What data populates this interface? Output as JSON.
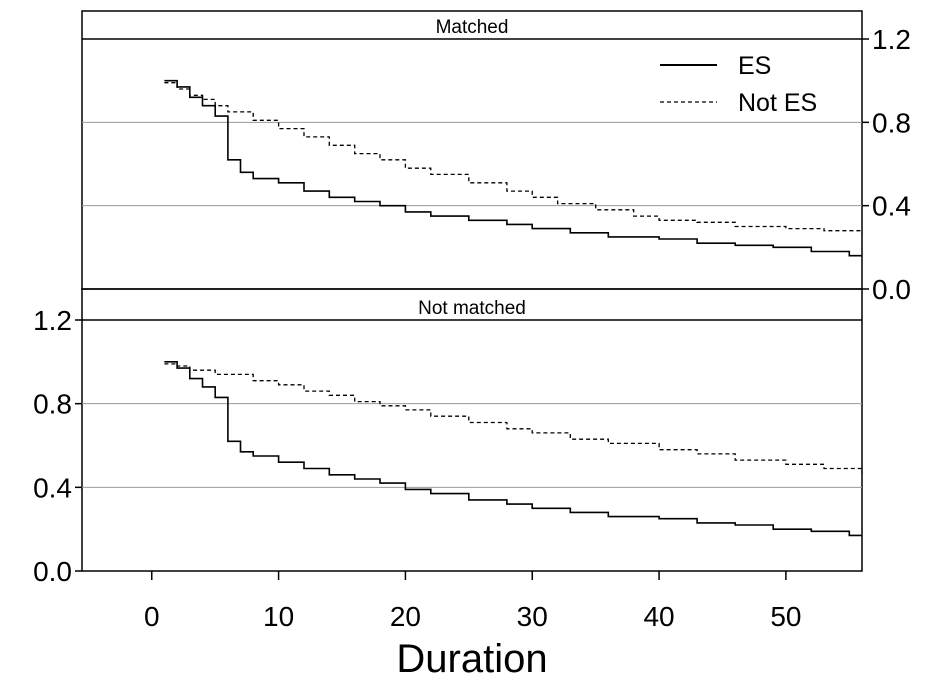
{
  "chart_data": {
    "type": "line",
    "subtype": "step",
    "xlabel": "Duration",
    "x_ticks": [
      "0",
      "10",
      "20",
      "30",
      "40",
      "50"
    ],
    "y_ticks": [
      "0.0",
      "0.4",
      "0.8",
      "1.2"
    ],
    "xlim": [
      -5.5,
      56
    ],
    "ylim": [
      0,
      1.2
    ],
    "grid": "horizontal",
    "legend": {
      "placement": "top-right of Matched panel",
      "entries": [
        {
          "label": "ES",
          "style": "solid"
        },
        {
          "label": "Not ES",
          "style": "dashed"
        }
      ]
    },
    "panels": [
      {
        "title": "Matched",
        "y_axis_side": "right",
        "series": [
          {
            "name": "ES",
            "style": "solid",
            "points": [
              [
                1,
                1.0
              ],
              [
                2,
                0.97
              ],
              [
                3,
                0.92
              ],
              [
                4,
                0.88
              ],
              [
                5,
                0.83
              ],
              [
                6,
                0.62
              ],
              [
                7,
                0.56
              ],
              [
                8,
                0.53
              ],
              [
                10,
                0.51
              ],
              [
                12,
                0.47
              ],
              [
                14,
                0.44
              ],
              [
                16,
                0.42
              ],
              [
                18,
                0.4
              ],
              [
                20,
                0.37
              ],
              [
                22,
                0.35
              ],
              [
                25,
                0.33
              ],
              [
                28,
                0.31
              ],
              [
                30,
                0.29
              ],
              [
                33,
                0.27
              ],
              [
                36,
                0.25
              ],
              [
                40,
                0.24
              ],
              [
                43,
                0.22
              ],
              [
                46,
                0.21
              ],
              [
                49,
                0.2
              ],
              [
                52,
                0.18
              ],
              [
                55,
                0.16
              ],
              [
                56,
                0.16
              ]
            ]
          },
          {
            "name": "Not ES",
            "style": "dashed",
            "points": [
              [
                1,
                0.99
              ],
              [
                2,
                0.96
              ],
              [
                3,
                0.93
              ],
              [
                4,
                0.91
              ],
              [
                5,
                0.88
              ],
              [
                6,
                0.85
              ],
              [
                8,
                0.81
              ],
              [
                10,
                0.77
              ],
              [
                12,
                0.73
              ],
              [
                14,
                0.69
              ],
              [
                16,
                0.65
              ],
              [
                18,
                0.62
              ],
              [
                20,
                0.58
              ],
              [
                22,
                0.55
              ],
              [
                25,
                0.51
              ],
              [
                28,
                0.47
              ],
              [
                30,
                0.44
              ],
              [
                32,
                0.41
              ],
              [
                35,
                0.38
              ],
              [
                38,
                0.35
              ],
              [
                40,
                0.33
              ],
              [
                43,
                0.32
              ],
              [
                46,
                0.3
              ],
              [
                50,
                0.29
              ],
              [
                53,
                0.28
              ],
              [
                56,
                0.27
              ]
            ]
          }
        ]
      },
      {
        "title": "Not matched",
        "y_axis_side": "left",
        "series": [
          {
            "name": "ES",
            "style": "solid",
            "points": [
              [
                1,
                1.0
              ],
              [
                2,
                0.97
              ],
              [
                3,
                0.92
              ],
              [
                4,
                0.88
              ],
              [
                5,
                0.83
              ],
              [
                6,
                0.62
              ],
              [
                7,
                0.57
              ],
              [
                8,
                0.55
              ],
              [
                10,
                0.52
              ],
              [
                12,
                0.49
              ],
              [
                14,
                0.46
              ],
              [
                16,
                0.44
              ],
              [
                18,
                0.42
              ],
              [
                20,
                0.39
              ],
              [
                22,
                0.37
              ],
              [
                25,
                0.34
              ],
              [
                28,
                0.32
              ],
              [
                30,
                0.3
              ],
              [
                33,
                0.28
              ],
              [
                36,
                0.26
              ],
              [
                40,
                0.25
              ],
              [
                43,
                0.23
              ],
              [
                46,
                0.22
              ],
              [
                49,
                0.2
              ],
              [
                52,
                0.19
              ],
              [
                55,
                0.17
              ],
              [
                56,
                0.17
              ]
            ]
          },
          {
            "name": "Not ES",
            "style": "dashed",
            "points": [
              [
                1,
                0.99
              ],
              [
                2,
                0.98
              ],
              [
                3,
                0.96
              ],
              [
                5,
                0.94
              ],
              [
                8,
                0.91
              ],
              [
                10,
                0.89
              ],
              [
                12,
                0.86
              ],
              [
                14,
                0.84
              ],
              [
                16,
                0.81
              ],
              [
                18,
                0.79
              ],
              [
                20,
                0.77
              ],
              [
                22,
                0.74
              ],
              [
                25,
                0.71
              ],
              [
                28,
                0.68
              ],
              [
                30,
                0.66
              ],
              [
                33,
                0.63
              ],
              [
                36,
                0.61
              ],
              [
                40,
                0.58
              ],
              [
                43,
                0.56
              ],
              [
                46,
                0.53
              ],
              [
                50,
                0.51
              ],
              [
                53,
                0.49
              ],
              [
                56,
                0.47
              ]
            ]
          }
        ]
      }
    ]
  }
}
